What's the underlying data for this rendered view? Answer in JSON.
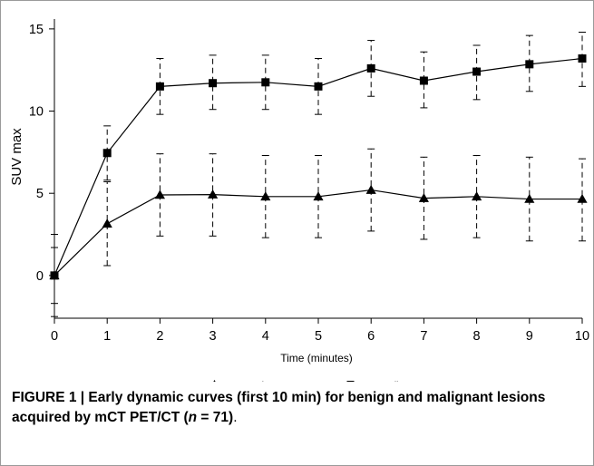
{
  "caption": {
    "lead": "FIGURE 1 | Early dynamic curves (first 10 min) for benign and malignant lesions acquired by mCT PET/CT (",
    "n_symbol": "n",
    "n_value": " = 71)",
    "end": "."
  },
  "chart_data": {
    "type": "line",
    "title": "",
    "xlabel": "Time (minutes)",
    "ylabel": "SUV max",
    "xlim": [
      0,
      10
    ],
    "ylim": [
      -2.6,
      15.6
    ],
    "xticks": [
      "0",
      "1",
      "2",
      "3",
      "4",
      "5",
      "6",
      "7",
      "8",
      "9",
      "10"
    ],
    "yticks": [
      "0",
      "5",
      "10",
      "15"
    ],
    "grid": false,
    "legend_position": "bottom",
    "x": [
      0,
      1,
      2,
      3,
      4,
      5,
      6,
      7,
      8,
      9,
      10
    ],
    "series": [
      {
        "name": "Benign",
        "marker": "triangle",
        "values": [
          0,
          3.15,
          4.9,
          4.92,
          4.8,
          4.8,
          5.2,
          4.7,
          4.8,
          4.65,
          4.65
        ],
        "lower": [
          -2.5,
          0.6,
          2.4,
          2.4,
          2.3,
          2.3,
          2.7,
          2.2,
          2.3,
          2.1,
          2.1
        ],
        "upper": [
          2.5,
          5.7,
          7.4,
          7.4,
          7.3,
          7.3,
          7.7,
          7.2,
          7.3,
          7.2,
          7.1
        ]
      },
      {
        "name": "Malignant",
        "marker": "square",
        "values": [
          0,
          7.45,
          11.5,
          11.7,
          11.75,
          11.5,
          12.6,
          11.85,
          12.4,
          12.85,
          13.2
        ],
        "lower": [
          -1.7,
          5.8,
          9.8,
          10.1,
          10.1,
          9.8,
          10.9,
          10.2,
          10.7,
          11.2,
          11.5
        ],
        "upper": [
          1.7,
          9.1,
          13.2,
          13.4,
          13.4,
          13.2,
          14.3,
          13.6,
          14.0,
          14.6,
          14.8
        ]
      }
    ]
  },
  "colors": {
    "line": "#000000",
    "frame": "#9a9a9a"
  }
}
